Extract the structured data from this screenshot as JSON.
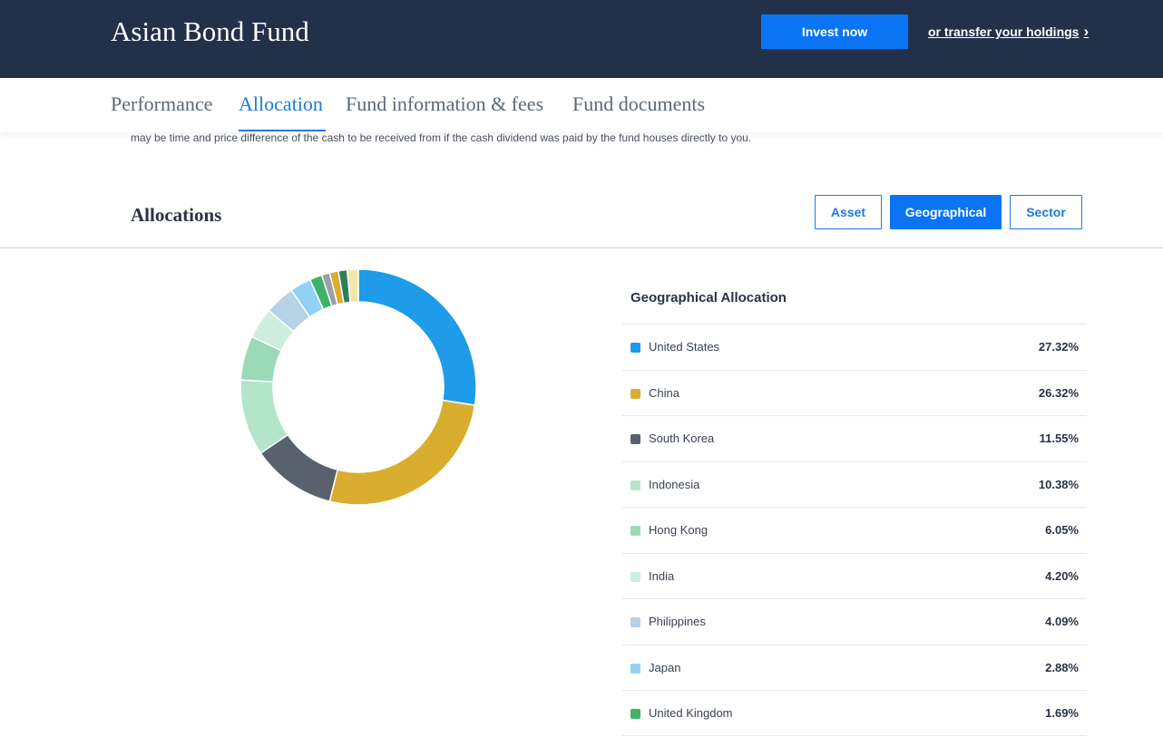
{
  "header": {
    "title": "Asian Bond Fund",
    "invest_label": "Invest now",
    "transfer_label": "or transfer your holdings",
    "transfer_icon": "chevron-right-icon"
  },
  "tabs": [
    {
      "label": "Performance",
      "active": false
    },
    {
      "label": "Allocation",
      "active": true
    },
    {
      "label": "Fund information & fees",
      "active": false
    },
    {
      "label": "Fund documents",
      "active": false
    }
  ],
  "note": "may be time and price difference of the cash to be received from if the cash dividend was paid by the fund houses directly to you.",
  "allocations": {
    "title": "Allocations",
    "buttons": [
      {
        "label": "Asset",
        "selected": false
      },
      {
        "label": "Geographical",
        "selected": true
      },
      {
        "label": "Sector",
        "selected": false
      }
    ]
  },
  "legend": {
    "title": "Geographical Allocation",
    "items": [
      {
        "name": "United States",
        "value": "27.32%",
        "color": "#1e9be9"
      },
      {
        "name": "China",
        "value": "26.32%",
        "color": "#d9ae30"
      },
      {
        "name": "South Korea",
        "value": "11.55%",
        "color": "#58616d"
      },
      {
        "name": "Indonesia",
        "value": "10.38%",
        "color": "#b4e5cb"
      },
      {
        "name": "Hong Kong",
        "value": "6.05%",
        "color": "#9bdab7"
      },
      {
        "name": "India",
        "value": "4.20%",
        "color": "#cdeede"
      },
      {
        "name": "Philippines",
        "value": "4.09%",
        "color": "#b4d3e6"
      },
      {
        "name": "Japan",
        "value": "2.88%",
        "color": "#92d0f6"
      },
      {
        "name": "United Kingdom",
        "value": "1.69%",
        "color": "#3fb36a"
      }
    ]
  },
  "chart_data": {
    "type": "pie",
    "variant": "donut",
    "title": "Geographical Allocation",
    "categories": [
      "United States",
      "China",
      "South Korea",
      "Indonesia",
      "Hong Kong",
      "India",
      "Philippines",
      "Japan",
      "United Kingdom"
    ],
    "values": [
      27.32,
      26.32,
      11.55,
      10.38,
      6.05,
      4.2,
      4.09,
      2.88,
      1.69
    ],
    "colors": [
      "#1e9be9",
      "#d9ae30",
      "#58616d",
      "#b4e5cb",
      "#9bdab7",
      "#cdeede",
      "#b4d3e6",
      "#92d0f6",
      "#3fb36a"
    ],
    "unlabeled_slices": [
      {
        "value": 1.1,
        "color": "#9aa0a8"
      },
      {
        "value": 1.2,
        "color": "#d9ae30"
      },
      {
        "value": 1.2,
        "color": "#2e7d5e"
      },
      {
        "value": 1.5,
        "color": "#f1e6a8"
      }
    ]
  }
}
